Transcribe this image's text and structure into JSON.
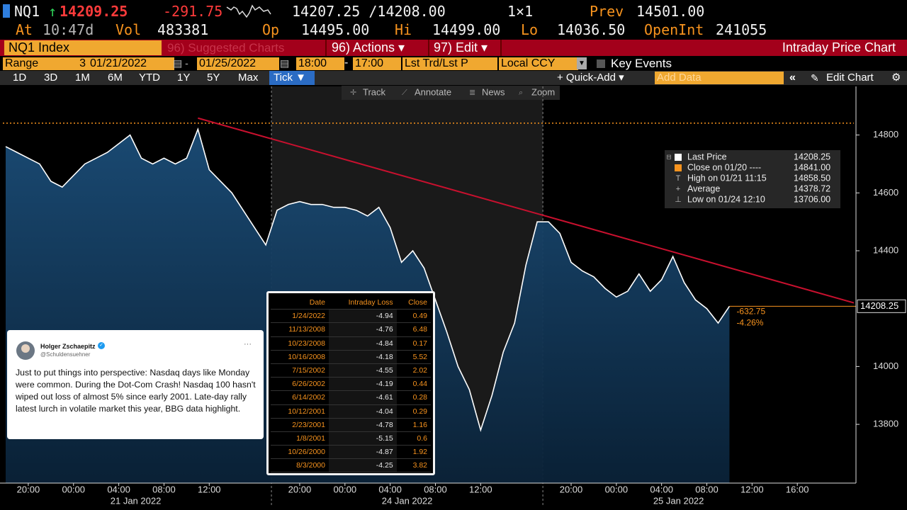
{
  "header": {
    "ticker": "NQ1",
    "arrow": "↑",
    "last": "14209.25",
    "change": "-291.75",
    "bid_ask": "14207.25 /14208.00",
    "size": "1×1",
    "prev_label": "Prev",
    "prev": "14501.00",
    "time_label": "At",
    "time": "10:47d",
    "vol_label": "Vol",
    "vol": "483381",
    "open_label": "Op",
    "open": "14495.00",
    "hi_label": "Hi",
    "hi": "14499.00",
    "lo_label": "Lo",
    "lo": "14036.50",
    "oi_label": "OpenInt",
    "oi": "241055"
  },
  "menu": {
    "security": "NQ1 Index",
    "suggested": "96) Suggested Charts",
    "actions": "96) Actions ▾",
    "edit": "97) Edit ▾",
    "title": "Intraday Price Chart"
  },
  "range_bar": {
    "label": "Range",
    "period": "3",
    "start": "01/21/2022",
    "end": "01/25/2022",
    "start_time": "18:00",
    "end_time": "17:00",
    "field": "Lst Trd/Lst P",
    "currency": "Local CCY",
    "events": "Key Events"
  },
  "tabs": {
    "items": [
      "1D",
      "3D",
      "1M",
      "6M",
      "YTD",
      "1Y",
      "5Y",
      "Max",
      "Tick ▼"
    ],
    "quick_add": "+ Quick-Add ▾",
    "add_data": "Add Data",
    "edit_chart": "Edit Chart"
  },
  "tools": [
    "Track",
    "Annotate",
    "News",
    "Zoom"
  ],
  "chart_data": {
    "type": "line",
    "categories": [
      null,
      null,
      "20:00",
      null,
      null,
      null,
      "00:00",
      null,
      null,
      null,
      "04:00",
      null,
      null,
      null,
      "08:00",
      null,
      null,
      null,
      "12:00",
      null,
      null,
      null,
      null,
      null,
      null,
      null,
      "20:00",
      null,
      null,
      null,
      "00:00",
      null,
      null,
      null,
      "04:00",
      null,
      null,
      null,
      "08:00",
      null,
      null,
      null,
      "12:00",
      null,
      null,
      null,
      null,
      null,
      null,
      null,
      "20:00",
      null,
      null,
      null,
      "00:00",
      null,
      null,
      null,
      "04:00",
      null,
      null,
      null,
      "08:00",
      null,
      null,
      null,
      "12:00",
      null,
      null,
      null,
      "16:00",
      null,
      null,
      null,
      null,
      null
    ],
    "x_groups": [
      "21 Jan 2022",
      "24 Jan 2022",
      "25 Jan 2022"
    ],
    "series": [
      {
        "name": "Last Price",
        "color": "#ffffff",
        "area_color": "#123a5e",
        "values": [
          14760,
          14740,
          14720,
          14700,
          14640,
          14620,
          14660,
          14700,
          14720,
          14740,
          14770,
          14800,
          14720,
          14700,
          14720,
          14700,
          14720,
          14820,
          14680,
          14640,
          14600,
          14540,
          14480,
          14420,
          14540,
          14560,
          14570,
          14560,
          14560,
          14550,
          14550,
          14540,
          14520,
          14550,
          14480,
          14360,
          14400,
          14340,
          14230,
          14120,
          14000,
          13920,
          13780,
          13900,
          14050,
          14150,
          14350,
          14500,
          14500,
          14460,
          14360,
          14330,
          14310,
          14270,
          14240,
          14260,
          14320,
          14260,
          14300,
          14380,
          14290,
          14230,
          14200,
          14150,
          14208.25,
          null,
          null,
          null,
          null,
          null,
          null,
          null,
          null,
          null,
          null,
          null
        ]
      }
    ],
    "ylim": [
      13597,
      14968
    ],
    "yticks": [
      13800,
      14000,
      14400,
      14600,
      14800
    ],
    "last_price": 14208.25,
    "change_labels": [
      "-632.75",
      "-4.26%"
    ],
    "reference_lines": [
      {
        "value": 14841,
        "color": "#f7931e"
      }
    ],
    "trendline": {
      "color": "#c8102e",
      "values": [
        14858.5,
        14220
      ]
    },
    "legend": {
      "corner": "upper-right",
      "last_value": "14208.25",
      "entries": [
        {
          "label": "Close on 01/20 ----",
          "value": "14841.00"
        },
        {
          "label": "High on 01/21 11:15",
          "value": "14858.50"
        },
        {
          "label": "Average",
          "value": "14378.72"
        },
        {
          "label": "Low on 01/24 12:10",
          "value": "13706.00"
        }
      ]
    }
  },
  "table": {
    "columns": [
      "Date",
      "Intraday Loss",
      "Close"
    ],
    "rows": [
      [
        "1/24/2022",
        -4.94,
        0.49
      ],
      [
        "11/13/2008",
        -4.76,
        6.48
      ],
      [
        "10/23/2008",
        -4.84,
        0.17
      ],
      [
        "10/16/2008",
        -4.18,
        5.52
      ],
      [
        "7/15/2002",
        -4.55,
        2.02
      ],
      [
        "6/26/2002",
        -4.19,
        0.44
      ],
      [
        "6/14/2002",
        -4.61,
        0.28
      ],
      [
        "10/12/2001",
        -4.04,
        0.29
      ],
      [
        "2/23/2001",
        -4.78,
        1.16
      ],
      [
        "1/8/2001",
        -5.15,
        0.6
      ],
      [
        "10/26/2000",
        -4.87,
        1.92
      ],
      [
        "8/3/2000",
        -4.25,
        3.82
      ]
    ]
  },
  "tweet": {
    "name": "Holger Zschaepitz",
    "handle": "@Schuldensuehner",
    "more": "···",
    "text": "Just to put things into perspective: Nasdaq days like Monday were common. During the Dot-Com Crash! Nasdaq 100 hasn't wiped out loss of almost 5% since early 2001. Late-day rally latest lurch in volatile market this year, BBG data highlight."
  }
}
